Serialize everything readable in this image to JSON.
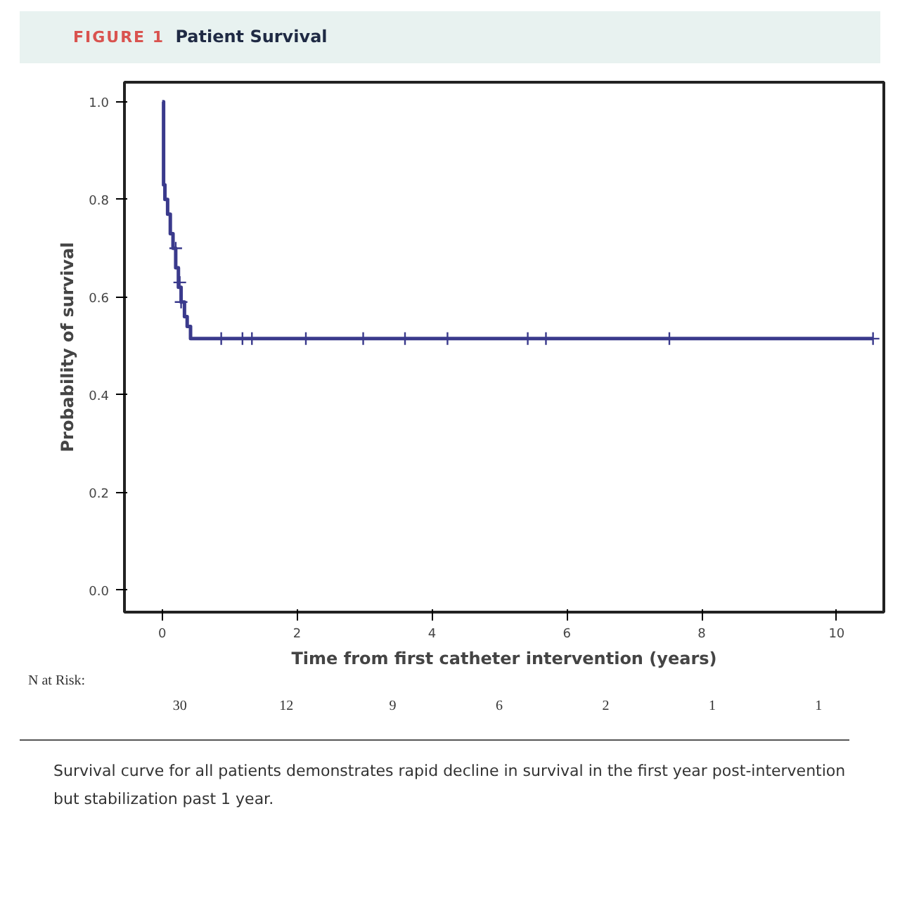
{
  "chart_data": {
    "type": "step",
    "subtitle": "FIGURE 1",
    "title": "Patient Survival",
    "xlabel": "Time from first catheter intervention (years)",
    "ylabel": "Probability of survival",
    "xlim": [
      -0.56,
      10.7
    ],
    "xticks": [
      0,
      2,
      4,
      6,
      8,
      10
    ],
    "ylim": [
      -0.045,
      1.04
    ],
    "yticks": [
      {
        "value": 0,
        "label": "0.0"
      },
      0.2,
      0.4,
      0.6,
      0.8,
      {
        "value": 1,
        "label": "1.0"
      }
    ],
    "grid": false,
    "series": [
      {
        "color": "#3a3a8c",
        "marker": "none",
        "x": [
          0,
          0.02,
          0.04,
          0.08,
          0.12,
          0.16,
          0.2,
          0.24,
          0.28,
          0.33,
          0.37,
          0.42,
          10.54
        ],
        "values": [
          1.0,
          0.83,
          0.8,
          0.77,
          0.73,
          0.7,
          0.66,
          0.62,
          0.59,
          0.56,
          0.54,
          0.515,
          0.515
        ]
      },
      {
        "type": "scatter",
        "color": "#3a3a8c",
        "marker": "cross",
        "x": [
          0.2,
          0.26,
          0.28,
          0.875,
          1.19,
          1.33,
          2.13,
          2.98,
          3.6,
          4.23,
          5.42,
          5.69,
          7.52,
          10.54
        ],
        "values": [
          0.7,
          0.63,
          0.59,
          0.515,
          0.515,
          0.515,
          0.515,
          0.515,
          0.515,
          0.515,
          0.515,
          0.515,
          0.515,
          0.515
        ]
      }
    ],
    "annotations": [
      "N at Risk:",
      "30",
      "12",
      "9",
      "6",
      "2",
      "1",
      "1",
      "Survival curve for all patients demonstrates rapid decline in survival in the first year post-intervention but stabilization past 1 year."
    ]
  }
}
